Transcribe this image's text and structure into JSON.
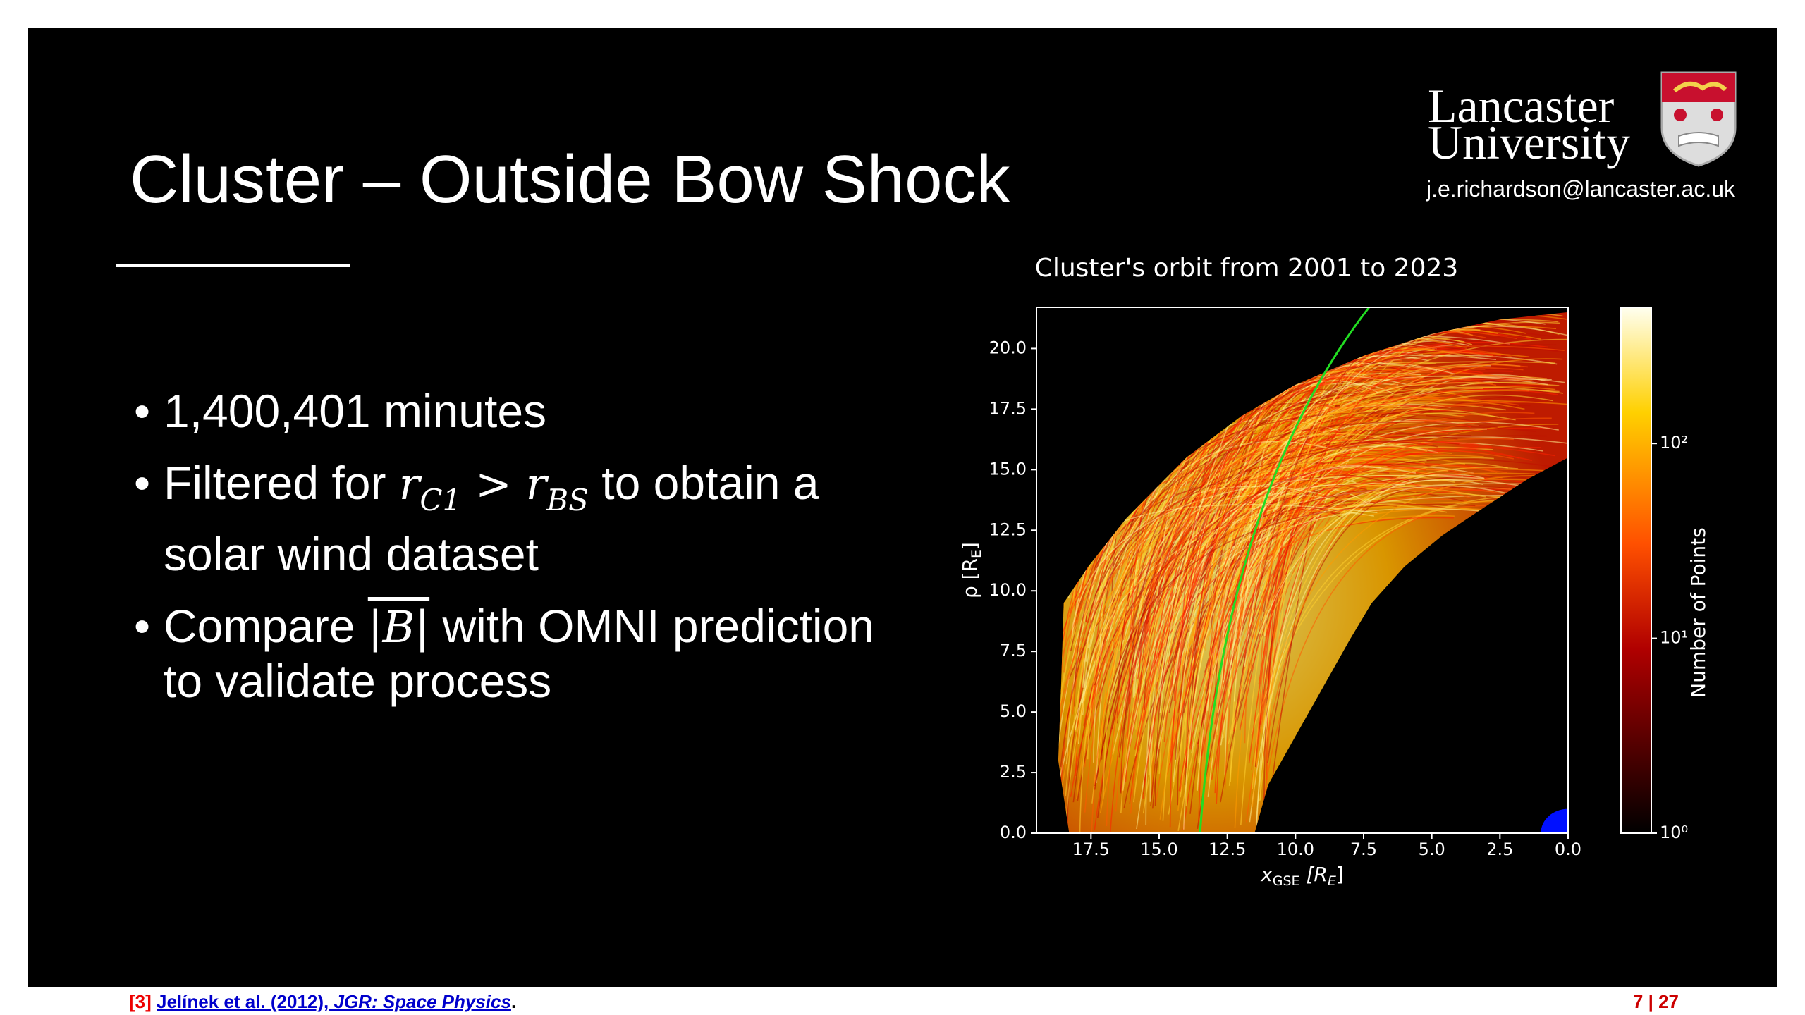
{
  "slide": {
    "title": "Cluster – Outside Bow Shock",
    "logo": {
      "line1": "Lancaster",
      "line2": "University"
    },
    "email": "j.e.richardson@lancaster.ac.uk",
    "bullets": [
      {
        "text": "1,400,401 minutes"
      },
      {
        "before": "Filtered for ",
        "lhs": "r",
        "lhs_sub": "C1",
        "op": " > ",
        "rhs": "r",
        "rhs_sub": "BS",
        "after": " to obtain a solar wind dataset"
      },
      {
        "before": "Compare ",
        "math": "|B|",
        "after": " with OMNI prediction to validate process"
      }
    ],
    "footer": {
      "ref": "[3]",
      "link_authors": "Jelínek et al. (2012), ",
      "link_journal": "JGR: Space Physics",
      "end": ".",
      "page": "7 | 27"
    }
  },
  "chart_data": {
    "type": "hist2d",
    "title": "Cluster's orbit from 2001 to 2023",
    "xlabel": [
      "x",
      "GSE",
      " [R",
      "E",
      "]"
    ],
    "ylabel": [
      "ρ [R",
      "E",
      "]"
    ],
    "xlim": [
      19.5,
      0
    ],
    "ylim": [
      0,
      21.7
    ],
    "xticks": [
      17.5,
      {
        "value": 15,
        "label": "15.0"
      },
      12.5,
      {
        "value": 10,
        "label": "10.0"
      },
      7.5,
      {
        "value": 5,
        "label": "5.0"
      },
      2.5,
      {
        "value": 0,
        "label": "0.0"
      }
    ],
    "yticks": [
      {
        "value": 0,
        "label": "0.0"
      },
      2.5,
      {
        "value": 5,
        "label": "5.0"
      },
      7.5,
      {
        "value": 10,
        "label": "10.0"
      },
      12.5,
      {
        "value": 15,
        "label": "15.0"
      },
      17.5,
      {
        "value": 20,
        "label": "20.0"
      }
    ],
    "colorbar": {
      "label": "Number of Points",
      "log": true,
      "lim": [
        1,
        500
      ],
      "ticks": [
        {
          "value": 1,
          "label": "10⁰"
        },
        {
          "value": 10,
          "label": "10¹"
        },
        {
          "value": 100,
          "label": "10²"
        }
      ]
    }
  }
}
